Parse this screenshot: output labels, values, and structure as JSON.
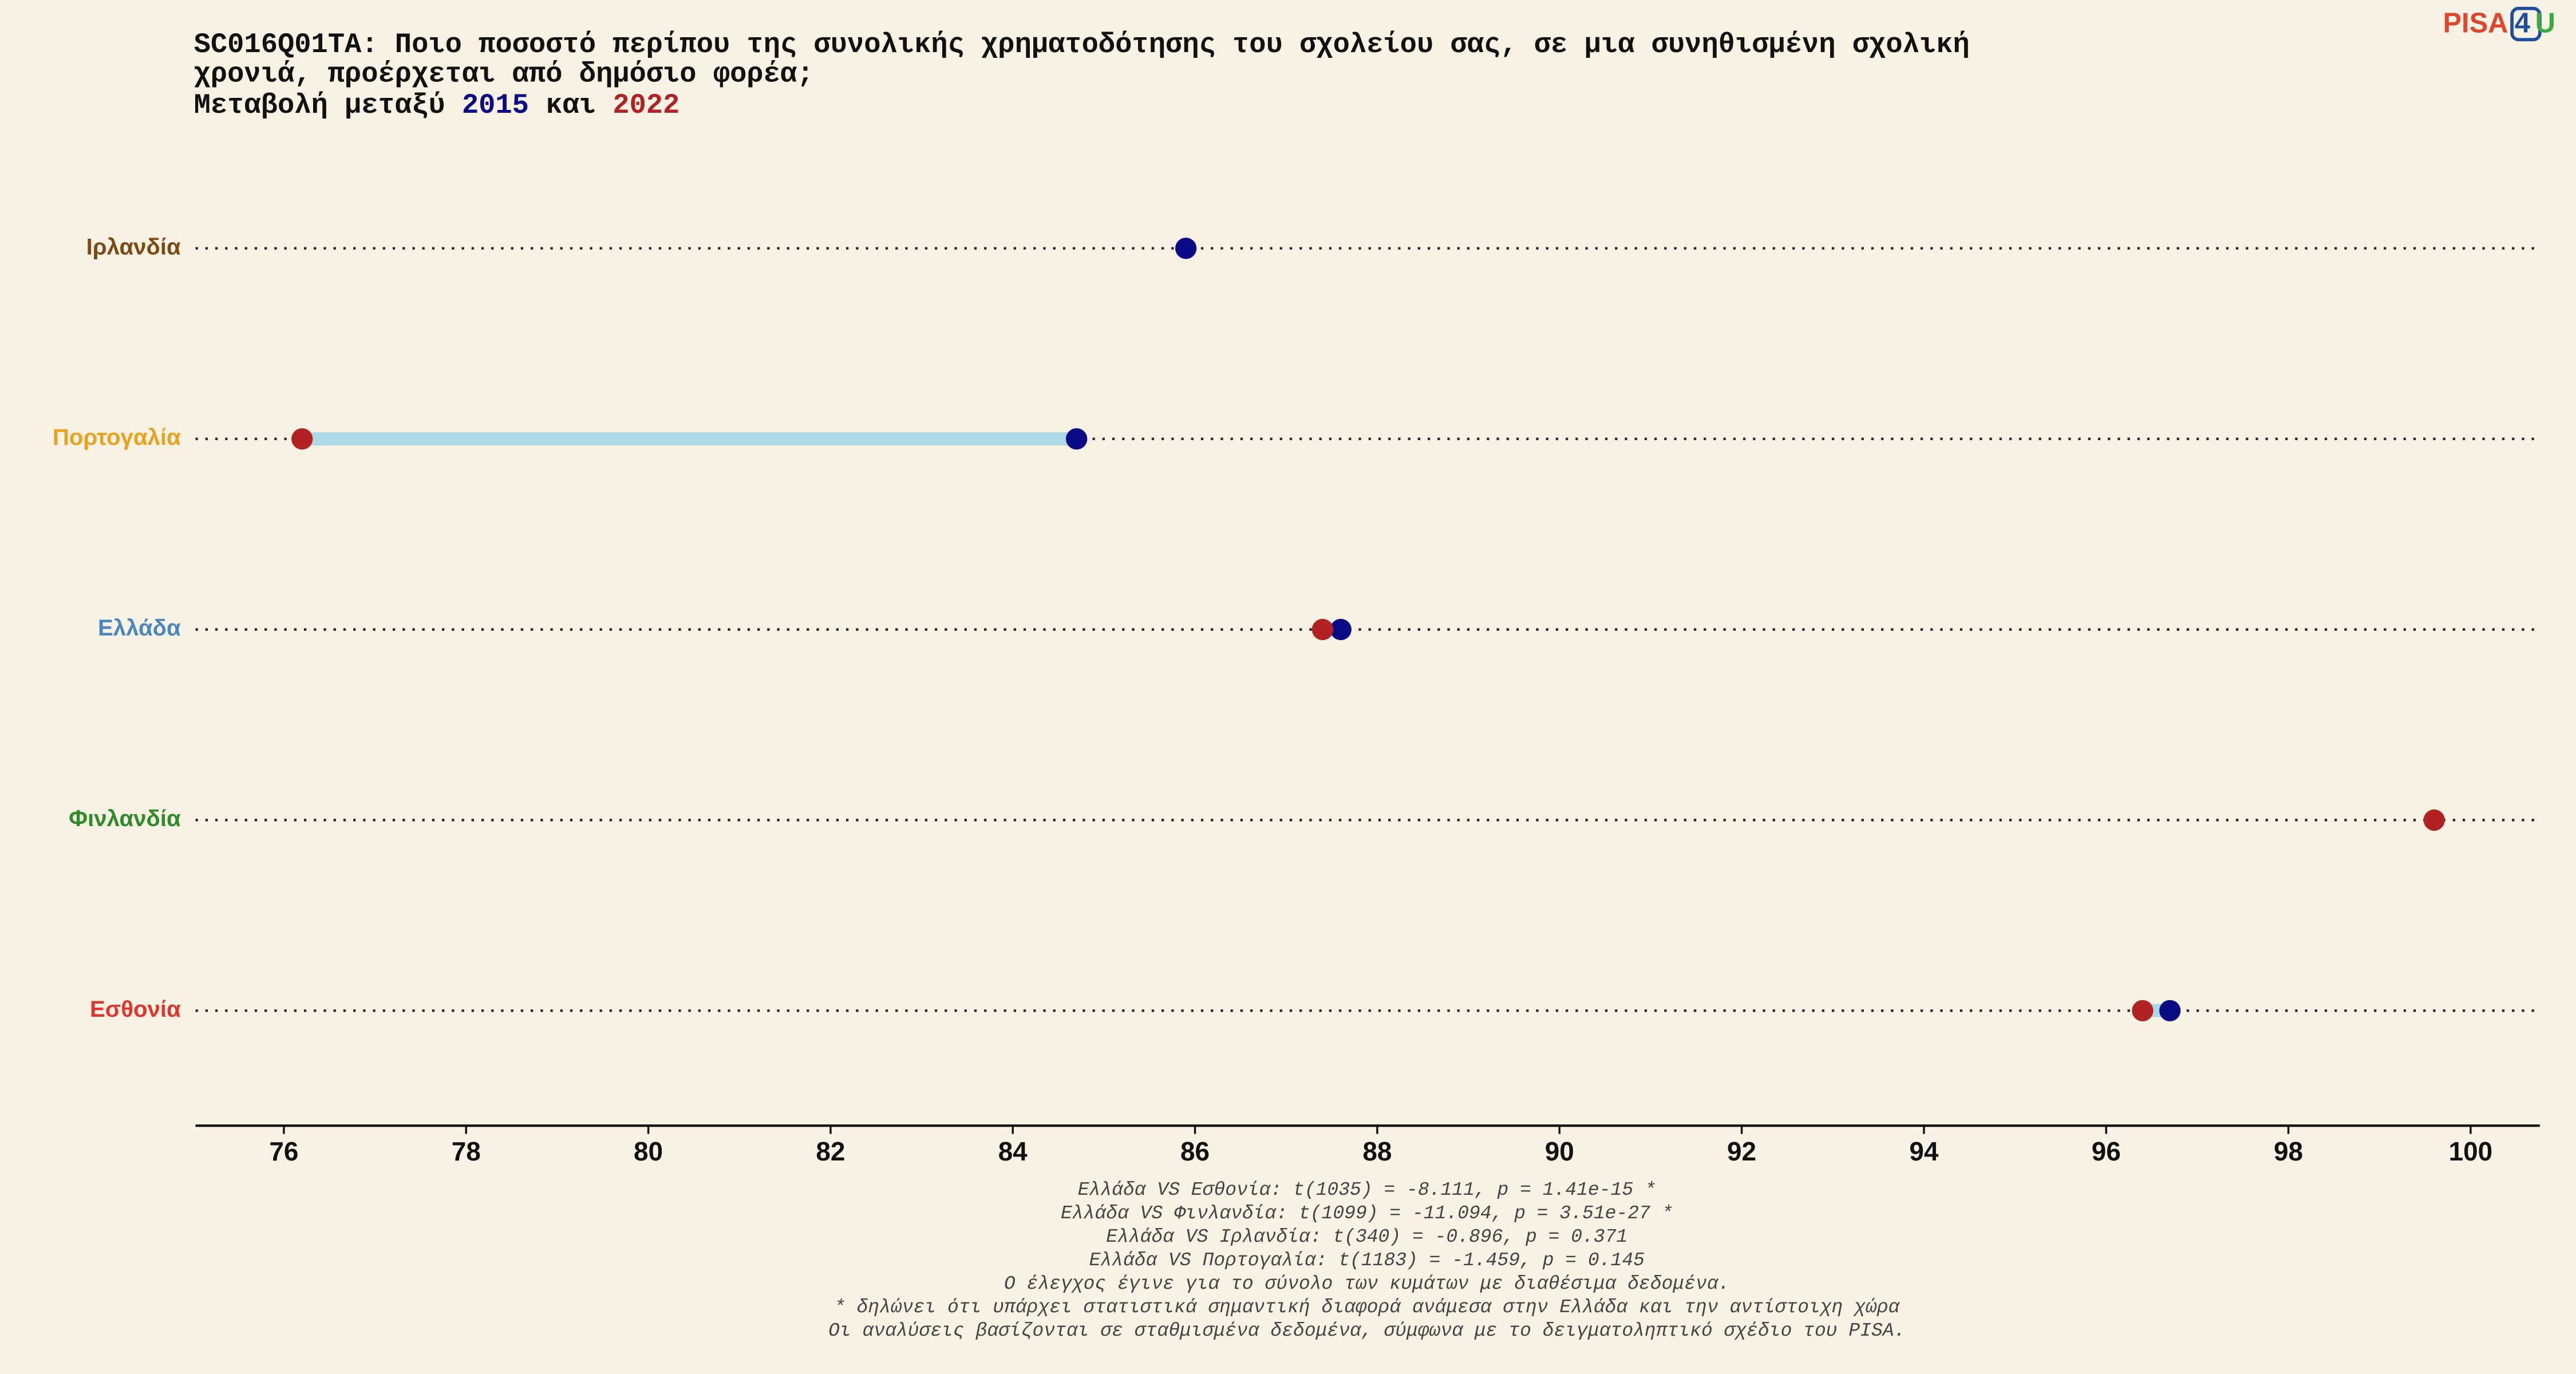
{
  "chart_data": {
    "type": "dumbbell",
    "title": [
      "SC016Q01TA: Ποιο ποσοστό περίπου της συνολικής χρηματοδότησης του σχολείου σας, σε μια συνηθισμένη σχολική",
      "χρονιά, προέρχεται από δημόσιο φορέα;"
    ],
    "subtitle": {
      "before": "Μεταβολή μεταξύ",
      "between": "και"
    },
    "logo": {
      "left": "PISA",
      "middle": "4",
      "right": "U",
      "colors": [
        "#e0452e",
        "#1f4e9c",
        "#3aa845"
      ]
    },
    "categories": [
      "Ιρλανδία",
      "Πορτογαλία",
      "Ελλάδα",
      "Φινλανδία",
      "Εσθονία"
    ],
    "category_colors": [
      "#7b4a12",
      "#e8a21c",
      "#4a86bd",
      "#2f8a2a",
      "#e0352c"
    ],
    "series": [
      {
        "name": "2015",
        "color": "#0b0a85",
        "values": [
          85.9,
          84.7,
          87.6,
          null,
          96.7
        ]
      },
      {
        "name": "2022",
        "color": "#b22222",
        "values": [
          null,
          76.2,
          87.4,
          99.6,
          96.4
        ]
      }
    ],
    "connector_color": "#add8e6",
    "xlim": [
      75.03,
      100.76
    ],
    "xticks": [
      76,
      78,
      80,
      82,
      84,
      86,
      88,
      90,
      92,
      94,
      96,
      98,
      100
    ],
    "footnotes": [
      "Ελλάδα VS Εσθονία: t(1035) = -8.111, p = 1.41e-15 *",
      "Ελλάδα VS Φινλανδία: t(1099) = -11.094, p = 3.51e-27 *",
      "Ελλάδα VS Ιρλανδία: t(340) = -0.896, p = 0.371",
      "Ελλάδα VS Πορτογαλία: t(1183) = -1.459, p = 0.145",
      "Ο έλεγχος έγινε για το σύνολο των κυμάτων με διαθέσιμα δεδομένα.",
      "* δηλώνει ότι υπάρχει στατιστικά σημαντική διαφορά ανάμεσα στην Ελλάδα και την αντίστοιχη χώρα",
      "Οι αναλύσεις βασίζονται σε σταθμισμένα δεδομένα, σύμφωνα με το δειγματοληπτικό σχέδιο του PISA."
    ]
  }
}
